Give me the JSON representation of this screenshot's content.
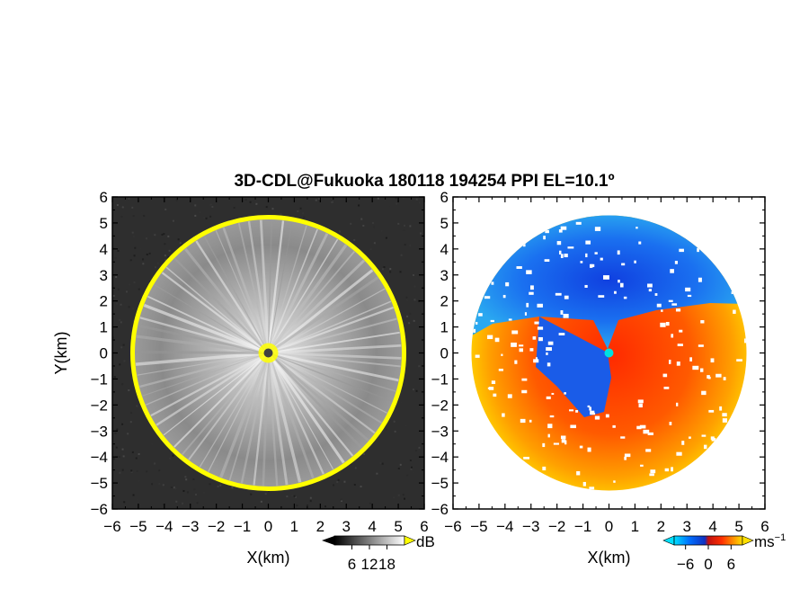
{
  "title": "3D-CDL@Fukuoka 180118 194254 PPI EL=10.1º",
  "colors": {
    "range_ring": "#ffff00",
    "reflectivity_background": "#2e2e2e",
    "reflectivity_center": "#f0f0f0",
    "velocity_toward": "#1e5ef0",
    "velocity_away": "#e83a10",
    "velocity_zero": "#00e0e0"
  },
  "chart_data": [
    {
      "type": "heatmap",
      "panel": "left",
      "quantity": "reflectivity",
      "xlabel": "X(km)",
      "ylabel": "Y(km)",
      "xlim": [
        -6,
        6
      ],
      "ylim": [
        -6,
        6
      ],
      "xticks": [
        -6,
        -5,
        -4,
        -3,
        -2,
        -1,
        0,
        1,
        2,
        3,
        4,
        5,
        6
      ],
      "yticks": [
        -6,
        -5,
        -4,
        -3,
        -2,
        -1,
        0,
        1,
        2,
        3,
        4,
        5,
        6
      ],
      "xtick_labels": [
        "−6",
        "−5",
        "−4",
        "−3",
        "−2",
        "−1",
        "0",
        "1",
        "2",
        "3",
        "4",
        "5",
        "6"
      ],
      "ytick_labels": [
        "−6",
        "−5",
        "−4",
        "−3",
        "−2",
        "−1",
        "0",
        "1",
        "2",
        "3",
        "4",
        "5",
        "6"
      ],
      "data_radius_km": 5.3,
      "colorbar": {
        "unit": "dB",
        "ticks": [
          6,
          12,
          18
        ],
        "tick_labels": [
          "6",
          "12",
          "18"
        ],
        "range": [
          0,
          24
        ]
      }
    },
    {
      "type": "heatmap",
      "panel": "right",
      "quantity": "radial velocity",
      "xlabel": "X(km)",
      "ylabel": "",
      "xlim": [
        -6,
        6
      ],
      "ylim": [
        -6,
        6
      ],
      "xticks": [
        -6,
        -5,
        -4,
        -3,
        -2,
        -1,
        0,
        1,
        2,
        3,
        4,
        5,
        6
      ],
      "yticks": [
        -6,
        -5,
        -4,
        -3,
        -2,
        -1,
        0,
        1,
        2,
        3,
        4,
        5,
        6
      ],
      "xtick_labels": [
        "−6",
        "−5",
        "−4",
        "−3",
        "−2",
        "−1",
        "0",
        "1",
        "2",
        "3",
        "4",
        "5",
        "6"
      ],
      "ytick_labels": [
        "−6",
        "−5",
        "−4",
        "−3",
        "−2",
        "−1",
        "0",
        "1",
        "2",
        "3",
        "4",
        "5",
        "6"
      ],
      "data_radius_km": 5.3,
      "colorbar": {
        "unit_base": "ms",
        "unit_exp": "−1",
        "ticks": [
          -6,
          0,
          6
        ],
        "tick_labels": [
          "−6",
          "0",
          "6"
        ],
        "range": [
          -9,
          9
        ]
      }
    }
  ]
}
